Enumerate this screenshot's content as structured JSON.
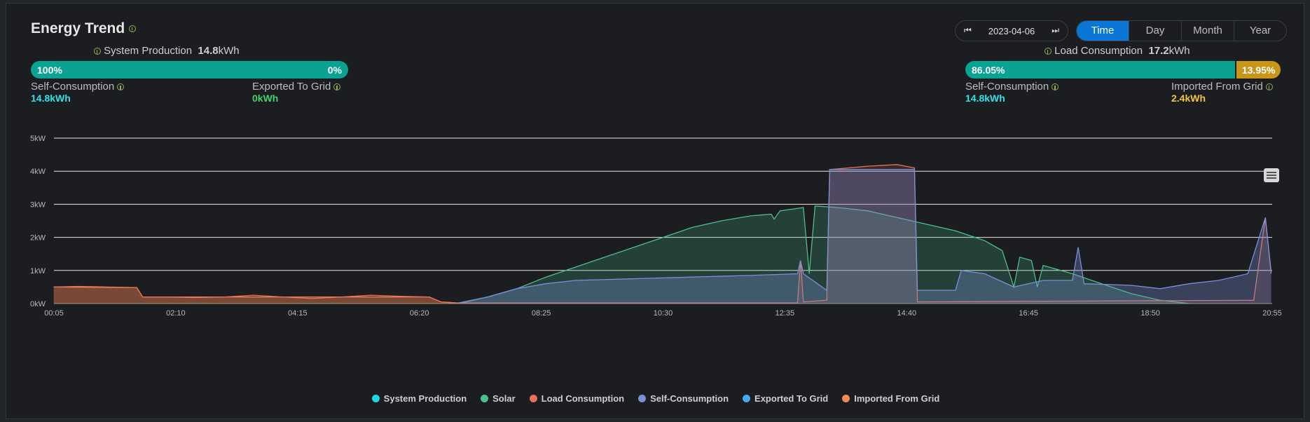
{
  "header": {
    "title": "Energy Trend"
  },
  "date_picker": {
    "date": "2023-04-06",
    "prev_icon": "first-page-icon",
    "next_icon": "last-page-icon"
  },
  "period_tabs": [
    {
      "label": "Time",
      "active": true
    },
    {
      "label": "Day",
      "active": false
    },
    {
      "label": "Month",
      "active": false
    },
    {
      "label": "Year",
      "active": false
    }
  ],
  "production": {
    "label": "System Production",
    "value": "14.8",
    "unit": "kWh",
    "bar": {
      "left_pct": "100%",
      "right_pct": "0%",
      "fraction": 1.0
    },
    "self_consumption": {
      "label": "Self-Consumption",
      "value": "14.8",
      "unit": "kWh"
    },
    "exported": {
      "label": "Exported To Grid",
      "value": "0",
      "unit": "kWh"
    }
  },
  "consumption": {
    "label": "Load Consumption",
    "value": "17.2",
    "unit": "kWh",
    "bar": {
      "left_pct": "86.05%",
      "right_pct": "13.95%",
      "fraction": 0.8605
    },
    "self_consumption": {
      "label": "Self-Consumption",
      "value": "14.8",
      "unit": "kWh"
    },
    "imported": {
      "label": "Imported From Grid",
      "value": "2.4",
      "unit": "kWh"
    }
  },
  "colors": {
    "system_production": "#22d3e6",
    "solar": "#4bbf8c",
    "load": "#e9705a",
    "self_consumption": "#7a8fd8",
    "exported": "#4aa8f0",
    "imported": "#f08a52",
    "self_value": "#33e0e8",
    "export_value": "#3fd36a",
    "import_value": "#f2c53d"
  },
  "chart_data": {
    "type": "area",
    "x_ticks": [
      "00:05",
      "02:10",
      "04:15",
      "06:20",
      "08:25",
      "10:30",
      "12:35",
      "14:40",
      "16:45",
      "18:50",
      "20:55"
    ],
    "y_ticks": [
      "0kW",
      "1kW",
      "2kW",
      "3kW",
      "4kW",
      "5kW"
    ],
    "ylim": [
      0,
      5
    ],
    "xlim_hours": [
      0.0833,
      20.9167
    ],
    "grid": true,
    "legend_position": "bottom",
    "series": [
      {
        "name": "System Production",
        "key": "system_production",
        "points": []
      },
      {
        "name": "Solar",
        "key": "solar",
        "points": [
          [
            7.0,
            0.0
          ],
          [
            7.5,
            0.2
          ],
          [
            8.0,
            0.45
          ],
          [
            8.5,
            0.8
          ],
          [
            9.0,
            1.1
          ],
          [
            9.5,
            1.4
          ],
          [
            10.0,
            1.7
          ],
          [
            10.5,
            2.0
          ],
          [
            11.0,
            2.3
          ],
          [
            11.5,
            2.5
          ],
          [
            12.0,
            2.65
          ],
          [
            12.35,
            2.7
          ],
          [
            12.4,
            2.55
          ],
          [
            12.5,
            2.8
          ],
          [
            12.9,
            2.9
          ],
          [
            13.0,
            0.9
          ],
          [
            13.1,
            2.95
          ],
          [
            13.5,
            2.9
          ],
          [
            14.0,
            2.8
          ],
          [
            14.5,
            2.6
          ],
          [
            15.0,
            2.4
          ],
          [
            15.5,
            2.2
          ],
          [
            16.0,
            1.9
          ],
          [
            16.3,
            1.6
          ],
          [
            16.5,
            0.5
          ],
          [
            16.6,
            1.4
          ],
          [
            16.8,
            1.3
          ],
          [
            16.9,
            0.5
          ],
          [
            17.0,
            1.15
          ],
          [
            17.5,
            0.9
          ],
          [
            18.0,
            0.6
          ],
          [
            18.5,
            0.3
          ],
          [
            19.0,
            0.1
          ],
          [
            19.5,
            0.0
          ]
        ]
      },
      {
        "name": "Load Consumption",
        "key": "load",
        "points": [
          [
            0.08,
            0.5
          ],
          [
            0.5,
            0.52
          ],
          [
            1.0,
            0.5
          ],
          [
            1.5,
            0.48
          ],
          [
            1.6,
            0.2
          ],
          [
            2.0,
            0.2
          ],
          [
            2.5,
            0.18
          ],
          [
            3.0,
            0.2
          ],
          [
            3.5,
            0.25
          ],
          [
            4.0,
            0.2
          ],
          [
            4.5,
            0.15
          ],
          [
            5.0,
            0.2
          ],
          [
            5.5,
            0.25
          ],
          [
            6.0,
            0.22
          ],
          [
            6.5,
            0.2
          ],
          [
            6.7,
            0.05
          ],
          [
            7.0,
            0.02
          ],
          [
            12.8,
            0.02
          ],
          [
            12.85,
            1.3
          ],
          [
            12.9,
            0.05
          ],
          [
            13.3,
            0.1
          ],
          [
            13.35,
            4.05
          ],
          [
            14.0,
            4.15
          ],
          [
            14.5,
            4.2
          ],
          [
            14.8,
            4.1
          ],
          [
            14.85,
            0.05
          ],
          [
            20.6,
            0.1
          ],
          [
            20.8,
            2.6
          ],
          [
            20.9,
            0.9
          ]
        ]
      },
      {
        "name": "Self-Consumption",
        "key": "self_consumption",
        "points": [
          [
            7.0,
            0.02
          ],
          [
            7.5,
            0.2
          ],
          [
            8.0,
            0.45
          ],
          [
            8.5,
            0.6
          ],
          [
            9.0,
            0.7
          ],
          [
            10.0,
            0.75
          ],
          [
            11.0,
            0.8
          ],
          [
            12.0,
            0.85
          ],
          [
            12.8,
            0.9
          ],
          [
            12.85,
            1.3
          ],
          [
            12.9,
            0.9
          ],
          [
            13.3,
            0.4
          ],
          [
            13.35,
            4.05
          ],
          [
            14.8,
            4.05
          ],
          [
            14.85,
            0.4
          ],
          [
            15.5,
            0.4
          ],
          [
            15.6,
            1.0
          ],
          [
            16.0,
            0.9
          ],
          [
            16.5,
            0.5
          ],
          [
            17.0,
            0.7
          ],
          [
            17.5,
            0.7
          ],
          [
            17.6,
            1.7
          ],
          [
            17.7,
            0.6
          ],
          [
            18.5,
            0.55
          ],
          [
            19.0,
            0.45
          ],
          [
            19.5,
            0.6
          ],
          [
            20.0,
            0.7
          ],
          [
            20.5,
            0.9
          ],
          [
            20.8,
            2.6
          ],
          [
            20.9,
            0.95
          ]
        ]
      },
      {
        "name": "Exported To Grid",
        "key": "exported",
        "points": []
      },
      {
        "name": "Imported From Grid",
        "key": "imported",
        "points": [
          [
            0.08,
            0.5
          ],
          [
            1.5,
            0.48
          ],
          [
            1.6,
            0.2
          ],
          [
            6.5,
            0.2
          ],
          [
            6.7,
            0.05
          ],
          [
            7.0,
            0.0
          ]
        ]
      }
    ]
  }
}
